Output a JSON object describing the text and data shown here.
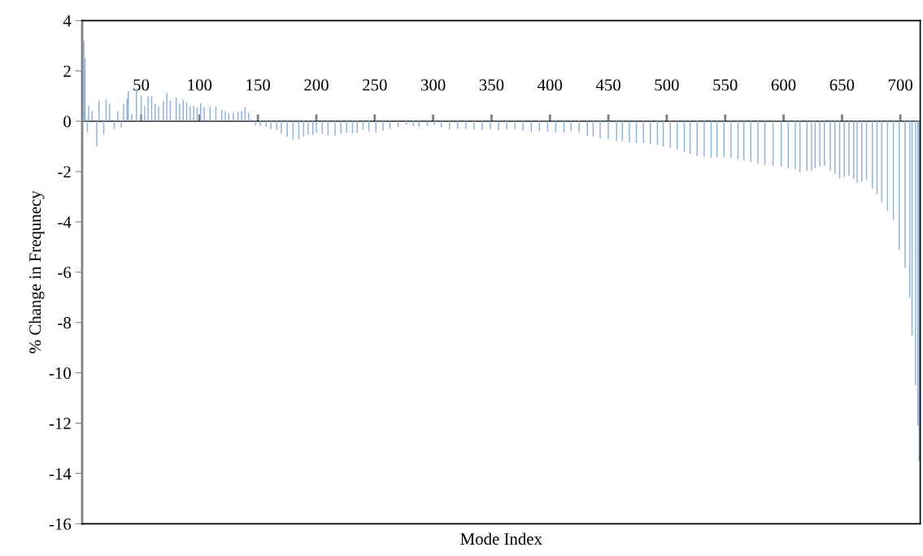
{
  "chart_data": {
    "type": "bar",
    "xlabel": "Mode Index",
    "ylabel": "% Change in Frequnecy",
    "x": [
      1,
      2,
      4,
      5,
      8,
      12,
      14,
      18,
      20,
      23,
      27,
      30,
      33,
      35,
      38,
      39,
      42,
      46,
      50,
      53,
      56,
      59,
      62,
      65,
      69,
      72,
      75,
      80,
      83,
      86,
      89,
      92,
      95,
      98,
      101,
      104,
      109,
      114,
      119,
      122,
      125,
      129,
      133,
      136,
      139,
      142,
      144,
      148,
      152,
      157,
      161,
      166,
      170,
      175,
      180,
      185,
      189,
      193,
      197,
      200,
      205,
      210,
      216,
      221,
      226,
      231,
      235,
      240,
      245,
      251,
      257,
      263,
      270,
      277,
      283,
      288,
      295,
      301,
      307,
      314,
      321,
      328,
      335,
      342,
      349,
      356,
      363,
      370,
      377,
      384,
      391,
      398,
      405,
      412,
      418,
      425,
      432,
      437,
      443,
      450,
      457,
      462,
      468,
      474,
      480,
      486,
      492,
      497,
      503,
      509,
      515,
      520,
      526,
      532,
      538,
      543,
      549,
      555,
      561,
      566,
      572,
      578,
      584,
      591,
      598,
      604,
      610,
      614,
      620,
      624,
      627,
      631,
      635,
      640,
      644,
      648,
      652,
      656,
      660,
      663,
      667,
      671,
      676,
      680,
      684,
      689,
      694,
      699,
      704,
      708,
      710,
      713,
      715,
      716
    ],
    "series": [
      {
        "color": "#8eb0dc",
        "values": [
          3.2,
          2.5,
          -0.44,
          0.61,
          0.4,
          -1.0,
          0.83,
          -0.53,
          0.85,
          0.7,
          -0.3,
          0.4,
          -0.25,
          0.7,
          0.9,
          1.2,
          0.3,
          1.28,
          1.02,
          0.6,
          0.99,
          1.0,
          0.7,
          0.6,
          0.8,
          1.12,
          0.83,
          0.94,
          0.7,
          0.85,
          0.74,
          0.6,
          0.61,
          0.55,
          0.72,
          0.56,
          0.58,
          0.59,
          0.45,
          0.4,
          0.32,
          0.35,
          0.38,
          0.4,
          0.56,
          0.34,
          0.1,
          -0.17,
          -0.2,
          -0.22,
          -0.3,
          -0.35,
          -0.5,
          -0.62,
          -0.73,
          -0.73,
          -0.6,
          -0.52,
          -0.55,
          -0.46,
          -0.5,
          -0.55,
          -0.59,
          -0.5,
          -0.46,
          -0.48,
          -0.46,
          -0.35,
          -0.4,
          -0.44,
          -0.38,
          -0.3,
          -0.22,
          -0.14,
          -0.2,
          -0.23,
          -0.18,
          -0.14,
          -0.25,
          -0.33,
          -0.3,
          -0.3,
          -0.33,
          -0.35,
          -0.33,
          -0.35,
          -0.32,
          -0.3,
          -0.38,
          -0.44,
          -0.4,
          -0.42,
          -0.45,
          -0.46,
          -0.4,
          -0.46,
          -0.59,
          -0.62,
          -0.68,
          -0.72,
          -0.78,
          -0.8,
          -0.84,
          -0.86,
          -0.87,
          -0.9,
          -0.95,
          -1.0,
          -1.05,
          -1.12,
          -1.22,
          -1.3,
          -1.38,
          -1.42,
          -1.45,
          -1.44,
          -1.43,
          -1.47,
          -1.52,
          -1.57,
          -1.62,
          -1.68,
          -1.73,
          -1.77,
          -1.8,
          -1.86,
          -1.91,
          -2.02,
          -1.97,
          -1.95,
          -1.86,
          -1.8,
          -1.77,
          -1.97,
          -2.1,
          -2.27,
          -2.2,
          -2.17,
          -2.3,
          -2.45,
          -2.4,
          -2.33,
          -2.68,
          -2.9,
          -3.21,
          -3.57,
          -3.92,
          -5.1,
          -5.82,
          -7.0,
          -8.53,
          -10.5,
          -12.1,
          -13.5
        ]
      }
    ],
    "xlim": [
      -0.5,
      717
    ],
    "xticks": [
      50,
      100,
      150,
      200,
      250,
      300,
      350,
      400,
      450,
      500,
      550,
      600,
      650,
      700
    ],
    "ylim": [
      -16,
      4
    ],
    "yticks": [
      -16,
      -14,
      -12,
      -10,
      -8,
      -6,
      -4,
      -2,
      0,
      2,
      4
    ],
    "grid": false
  }
}
